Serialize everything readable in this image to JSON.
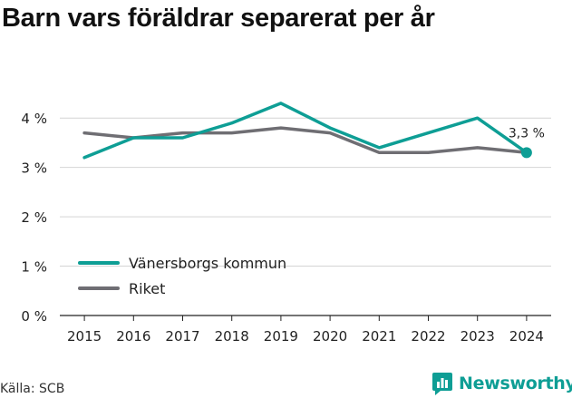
{
  "title": "Barn vars föräldrar separerat per år",
  "source": "Källa: SCB",
  "brand": {
    "name": "Newsworthy",
    "icon": "bar-chart-icon",
    "color": "#0e9e95"
  },
  "chart_data": {
    "type": "line",
    "x": [
      "2015",
      "2016",
      "2017",
      "2018",
      "2019",
      "2020",
      "2021",
      "2022",
      "2023",
      "2024"
    ],
    "ylim": [
      0,
      4.5
    ],
    "yticks": [
      0,
      1,
      2,
      3,
      4
    ],
    "ytick_labels": [
      "0 %",
      "1 %",
      "2 %",
      "3 %",
      "4 %"
    ],
    "grid": true,
    "legend_position": "bottom-left",
    "series": [
      {
        "name": "Vänersborgs kommun",
        "color": "#0e9e95",
        "values": [
          3.2,
          3.6,
          3.6,
          3.9,
          4.3,
          3.8,
          3.4,
          3.7,
          4.0,
          3.3
        ]
      },
      {
        "name": "Riket",
        "color": "#6f6e73",
        "values": [
          3.7,
          3.6,
          3.7,
          3.7,
          3.8,
          3.7,
          3.3,
          3.3,
          3.4,
          3.3
        ]
      }
    ],
    "annotation": {
      "series": 0,
      "index": 9,
      "text": "3,3 %"
    }
  }
}
